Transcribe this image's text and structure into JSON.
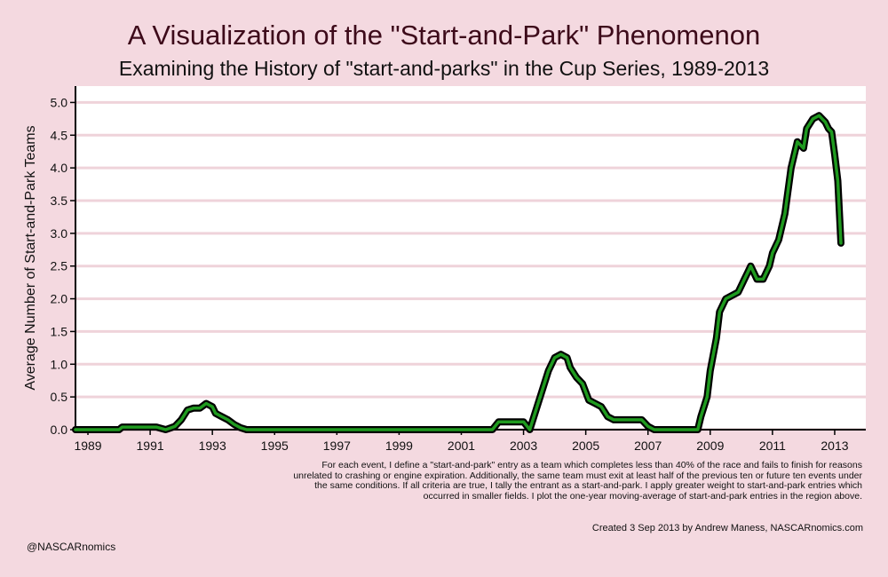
{
  "title": "A Visualization of the \"Start-and-Park\" Phenomenon",
  "subtitle": "Examining the History of \"start-and-parks\" in the Cup Series, 1989-2013",
  "note": "For each event, I define a \"start-and-park\" entry as a team which completes less than 40% of the race and fails to finish for reasons unrelated to crashing or engine expiration. Additionally, the same team must exit at least half of the previous ten or future ten events under the same conditions. If all criteria are true, I tally the entrant as a start-and-park. I apply greater weight to start-and-park entries which occurred in smaller fields. I plot the one-year moving-average of start-and-park entries in the region above.",
  "credit": "Created  3 Sep 2013 by Andrew Maness, NASCARnomics.com",
  "handle": "@NASCARnomics",
  "colors": {
    "background": "#f4d9e0",
    "plot_bg": "#ffffff",
    "line_fill": "#1f9a1f",
    "line_outline": "#000000",
    "gridline": "#efd3da"
  },
  "chart_data": {
    "type": "line",
    "title": "A Visualization of the \"Start-and-Park\" Phenomenon",
    "subtitle": "Examining the History of \"start-and-parks\" in the Cup Series, 1989-2013",
    "xlabel": "",
    "ylabel": "Average Number of Start-and-Park Teams",
    "xlim": [
      1988.6,
      2014.0
    ],
    "ylim": [
      0,
      5.25
    ],
    "xticks": [
      1989,
      1991,
      1993,
      1995,
      1997,
      1999,
      2001,
      2003,
      2005,
      2007,
      2009,
      2011,
      2013
    ],
    "yticks": [
      "0.0",
      "0.5",
      "1.0",
      "1.5",
      "2.0",
      "2.5",
      "3.0",
      "3.5",
      "4.0",
      "4.5",
      "5.0"
    ],
    "grid": "horizontal",
    "series": [
      {
        "x": [
          1988.6,
          1990.0,
          1990.1,
          1991.2,
          1991.5,
          1991.8,
          1992.0,
          1992.2,
          1992.4,
          1992.6,
          1992.8,
          1993.0,
          1993.1,
          1993.3,
          1993.5,
          1993.7,
          1993.9,
          1994.1,
          2002.0,
          2002.2,
          2003.0,
          2003.2,
          2003.4,
          2003.6,
          2003.8,
          2004.0,
          2004.2,
          2004.4,
          2004.5,
          2004.7,
          2004.9,
          2005.1,
          2005.3,
          2005.5,
          2005.7,
          2005.9,
          2006.2,
          2006.8,
          2007.0,
          2007.2,
          2008.6,
          2008.7,
          2008.9,
          2009.0,
          2009.2,
          2009.3,
          2009.5,
          2009.7,
          2009.9,
          2010.1,
          2010.2,
          2010.3,
          2010.5,
          2010.7,
          2010.9,
          2011.0,
          2011.2,
          2011.4,
          2011.6,
          2011.8,
          2012.0,
          2012.1,
          2012.3,
          2012.5,
          2012.6,
          2012.7,
          2012.8,
          2012.9,
          2013.0,
          2013.1,
          2013.2
        ],
        "y": [
          0.0,
          0.0,
          0.04,
          0.04,
          0.0,
          0.05,
          0.15,
          0.3,
          0.33,
          0.33,
          0.4,
          0.35,
          0.25,
          0.2,
          0.15,
          0.08,
          0.03,
          0.0,
          0.0,
          0.12,
          0.12,
          0.0,
          0.3,
          0.6,
          0.9,
          1.1,
          1.15,
          1.1,
          0.95,
          0.8,
          0.7,
          0.45,
          0.4,
          0.35,
          0.2,
          0.15,
          0.15,
          0.15,
          0.05,
          0.0,
          0.0,
          0.2,
          0.5,
          0.9,
          1.4,
          1.8,
          2.0,
          2.05,
          2.1,
          2.3,
          2.4,
          2.5,
          2.3,
          2.3,
          2.5,
          2.7,
          2.9,
          3.3,
          4.0,
          4.4,
          4.3,
          4.6,
          4.75,
          4.8,
          4.75,
          4.7,
          4.6,
          4.55,
          4.2,
          3.8,
          2.85
        ]
      }
    ]
  }
}
